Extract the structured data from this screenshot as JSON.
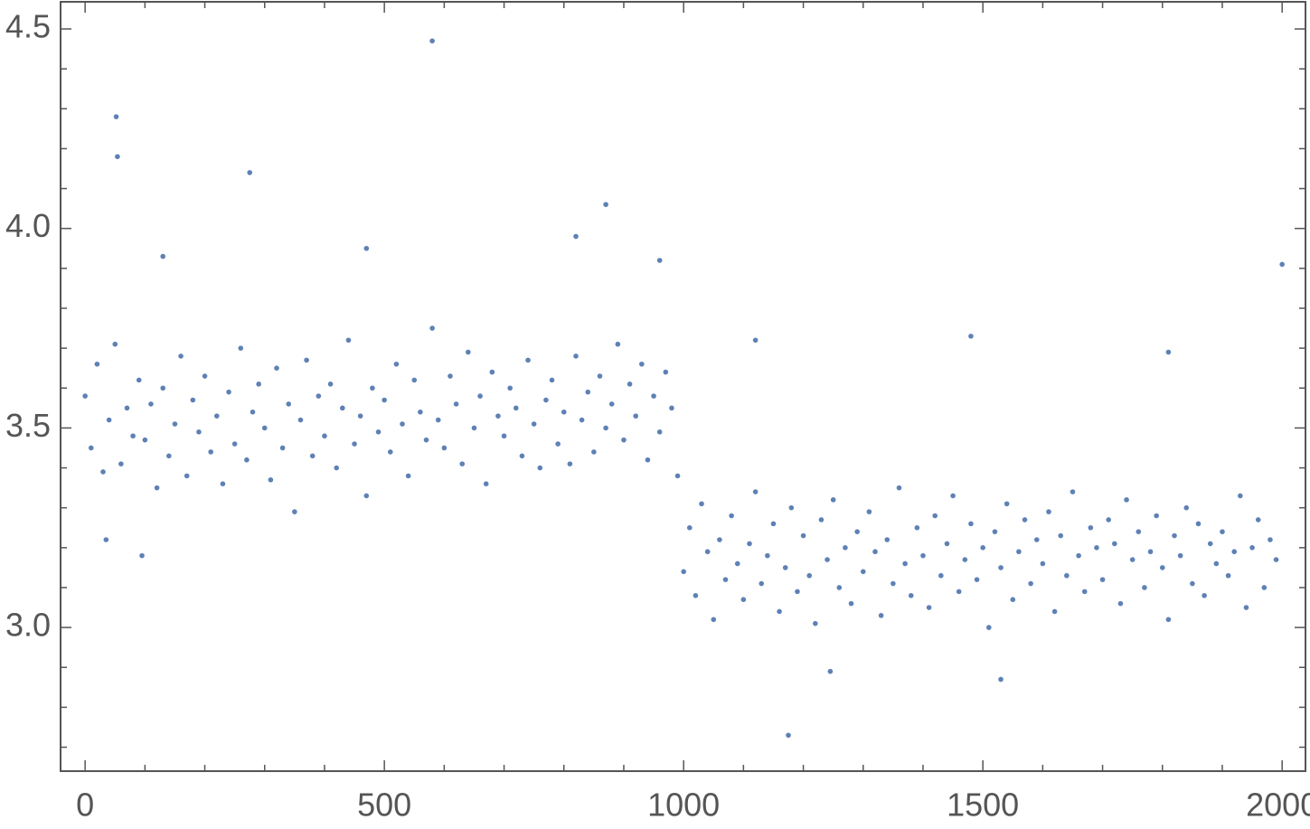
{
  "chart_data": {
    "type": "scatter",
    "color": "#5e81b5",
    "xlim": [
      -41,
      2039
    ],
    "ylim": [
      2.64,
      4.568
    ],
    "xticks": [
      0,
      500,
      1000,
      1500,
      2000
    ],
    "yticks": [
      {
        "value": 3,
        "label": "3.0"
      },
      {
        "value": 3.5,
        "label": "3.5"
      },
      {
        "value": 4,
        "label": "4.0"
      },
      {
        "value": 4.5,
        "label": "4.5"
      }
    ],
    "xminorticks": [
      100,
      200,
      300,
      400,
      600,
      700,
      800,
      900,
      1100,
      1200,
      1300,
      1400,
      1600,
      1700,
      1800,
      1900
    ],
    "yminorticks": [
      2.7,
      2.8,
      2.9,
      3.1,
      3.2,
      3.3,
      3.4,
      3.6,
      3.7,
      3.8,
      3.9,
      4.1,
      4.2,
      4.3,
      4.4
    ],
    "x": [
      0,
      10,
      20,
      30,
      40,
      50,
      60,
      70,
      80,
      90,
      100,
      110,
      120,
      130,
      140,
      150,
      160,
      170,
      180,
      190,
      200,
      210,
      220,
      230,
      240,
      250,
      260,
      270,
      280,
      290,
      300,
      310,
      320,
      330,
      340,
      350,
      360,
      370,
      380,
      390,
      400,
      410,
      420,
      430,
      440,
      450,
      460,
      470,
      480,
      490,
      500,
      510,
      520,
      530,
      540,
      550,
      560,
      570,
      580,
      590,
      600,
      610,
      620,
      630,
      640,
      650,
      660,
      670,
      680,
      690,
      700,
      710,
      720,
      730,
      740,
      750,
      760,
      770,
      780,
      790,
      800,
      810,
      820,
      830,
      840,
      850,
      860,
      870,
      880,
      890,
      900,
      910,
      920,
      930,
      940,
      950,
      960,
      970,
      980,
      990,
      1000,
      1010,
      1020,
      1030,
      1040,
      1050,
      1060,
      1070,
      1080,
      1090,
      1100,
      1110,
      1120,
      1130,
      1140,
      1150,
      1160,
      1170,
      1180,
      1190,
      1200,
      1210,
      1220,
      1230,
      1240,
      1250,
      1260,
      1270,
      1280,
      1290,
      1300,
      1310,
      1320,
      1330,
      1340,
      1350,
      1360,
      1370,
      1380,
      1390,
      1400,
      1410,
      1420,
      1430,
      1440,
      1450,
      1460,
      1470,
      1480,
      1490,
      1500,
      1510,
      1520,
      1530,
      1540,
      1550,
      1560,
      1570,
      1580,
      1590,
      1600,
      1610,
      1620,
      1630,
      1640,
      1650,
      1660,
      1670,
      1680,
      1690,
      1700,
      1710,
      1720,
      1730,
      1740,
      1750,
      1760,
      1770,
      1780,
      1790,
      1800,
      1810,
      1820,
      1830,
      1840,
      1850,
      1860,
      1870,
      1880,
      1890,
      1900,
      1910,
      1920,
      1930,
      1940,
      1950,
      1960,
      1970,
      1980,
      1990,
      52,
      54,
      275,
      580,
      870,
      1175,
      1530,
      2000,
      820,
      470,
      130,
      1480,
      1120,
      1245,
      35,
      95,
      960,
      1810
    ],
    "values": [
      3.58,
      3.45,
      3.66,
      3.39,
      3.52,
      3.71,
      3.41,
      3.55,
      3.48,
      3.62,
      3.47,
      3.56,
      3.35,
      3.6,
      3.43,
      3.51,
      3.68,
      3.38,
      3.57,
      3.49,
      3.63,
      3.44,
      3.53,
      3.36,
      3.59,
      3.46,
      3.7,
      3.42,
      3.54,
      3.61,
      3.5,
      3.37,
      3.65,
      3.45,
      3.56,
      3.29,
      3.52,
      3.67,
      3.43,
      3.58,
      3.48,
      3.61,
      3.4,
      3.55,
      3.72,
      3.46,
      3.53,
      3.33,
      3.6,
      3.49,
      3.57,
      3.44,
      3.66,
      3.51,
      3.38,
      3.62,
      3.54,
      3.47,
      3.75,
      3.52,
      3.45,
      3.63,
      3.56,
      3.41,
      3.69,
      3.5,
      3.58,
      3.36,
      3.64,
      3.53,
      3.48,
      3.6,
      3.55,
      3.43,
      3.67,
      3.51,
      3.4,
      3.57,
      3.62,
      3.46,
      3.54,
      3.41,
      3.68,
      3.52,
      3.59,
      3.44,
      3.63,
      3.5,
      3.56,
      3.71,
      3.47,
      3.61,
      3.53,
      3.66,
      3.42,
      3.58,
      3.49,
      3.64,
      3.55,
      3.38,
      3.14,
      3.25,
      3.08,
      3.31,
      3.19,
      3.02,
      3.22,
      3.12,
      3.28,
      3.16,
      3.07,
      3.21,
      3.34,
      3.11,
      3.18,
      3.26,
      3.04,
      3.15,
      3.3,
      3.09,
      3.23,
      3.13,
      3.01,
      3.27,
      3.17,
      3.32,
      3.1,
      3.2,
      3.06,
      3.24,
      3.14,
      3.29,
      3.19,
      3.03,
      3.22,
      3.11,
      3.35,
      3.16,
      3.08,
      3.25,
      3.18,
      3.05,
      3.28,
      3.13,
      3.21,
      3.33,
      3.09,
      3.17,
      3.26,
      3.12,
      3.2,
      3.0,
      3.24,
      3.15,
      3.31,
      3.07,
      3.19,
      3.27,
      3.11,
      3.22,
      3.16,
      3.29,
      3.04,
      3.23,
      3.13,
      3.34,
      3.18,
      3.09,
      3.25,
      3.2,
      3.12,
      3.27,
      3.21,
      3.06,
      3.32,
      3.17,
      3.24,
      3.1,
      3.19,
      3.28,
      3.15,
      3.02,
      3.23,
      3.18,
      3.3,
      3.11,
      3.26,
      3.08,
      3.21,
      3.16,
      3.24,
      3.13,
      3.19,
      3.33,
      3.05,
      3.2,
      3.27,
      3.1,
      3.22,
      3.17,
      4.28,
      4.18,
      4.14,
      4.47,
      4.06,
      2.73,
      2.87,
      3.91,
      3.98,
      3.95,
      3.93,
      3.73,
      3.72,
      2.89,
      3.22,
      3.18,
      3.92,
      3.69
    ]
  }
}
